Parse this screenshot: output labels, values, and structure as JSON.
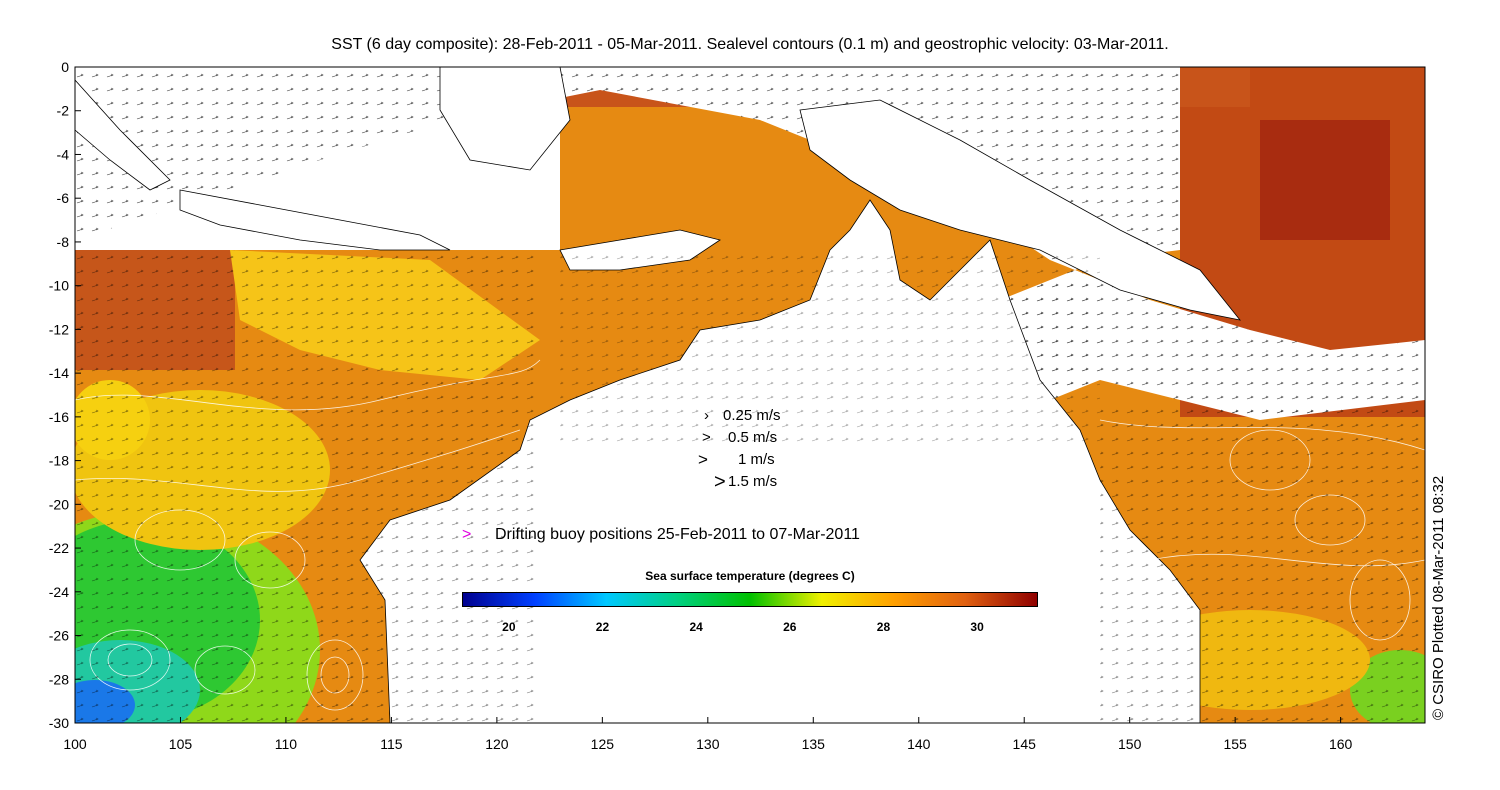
{
  "title": "SST (6 day composite): 28-Feb-2011 - 05-Mar-2011. Sealevel contours (0.1 m) and geostrophic velocity: 03-Mar-2011.",
  "axes": {
    "x_ticks": [
      "100",
      "105",
      "110",
      "115",
      "120",
      "125",
      "130",
      "135",
      "140",
      "145",
      "150",
      "155",
      "160"
    ],
    "y_ticks": [
      "0",
      "-2",
      "-4",
      "-6",
      "-8",
      "-10",
      "-12",
      "-14",
      "-16",
      "-18",
      "-20",
      "-22",
      "-24",
      "-26",
      "-28",
      "-30"
    ],
    "lon_range": [
      100,
      164
    ],
    "lat_range": [
      -30,
      0
    ]
  },
  "velocity_legend": [
    {
      "label": "0.25 m/s"
    },
    {
      "label": "0.5 m/s"
    },
    {
      "label": "1 m/s"
    },
    {
      "label": "1.5 m/s"
    }
  ],
  "buoy_legend": {
    "marker": ">",
    "label": "Drifting buoy positions 25-Feb-2011 to 07-Mar-2011",
    "color": "#e000e0"
  },
  "colorbar": {
    "title": "Sea surface temperature (degrees C)",
    "ticks": [
      "20",
      "22",
      "24",
      "26",
      "28",
      "30"
    ],
    "range": [
      19,
      31.3
    ],
    "colors": [
      "#00008f",
      "#0040ff",
      "#00c8ff",
      "#00d080",
      "#00c000",
      "#f0f000",
      "#ffa000",
      "#e06010",
      "#8f0000"
    ]
  },
  "credit": "© CSIRO Plotted 08-Mar-2011 08:32"
}
